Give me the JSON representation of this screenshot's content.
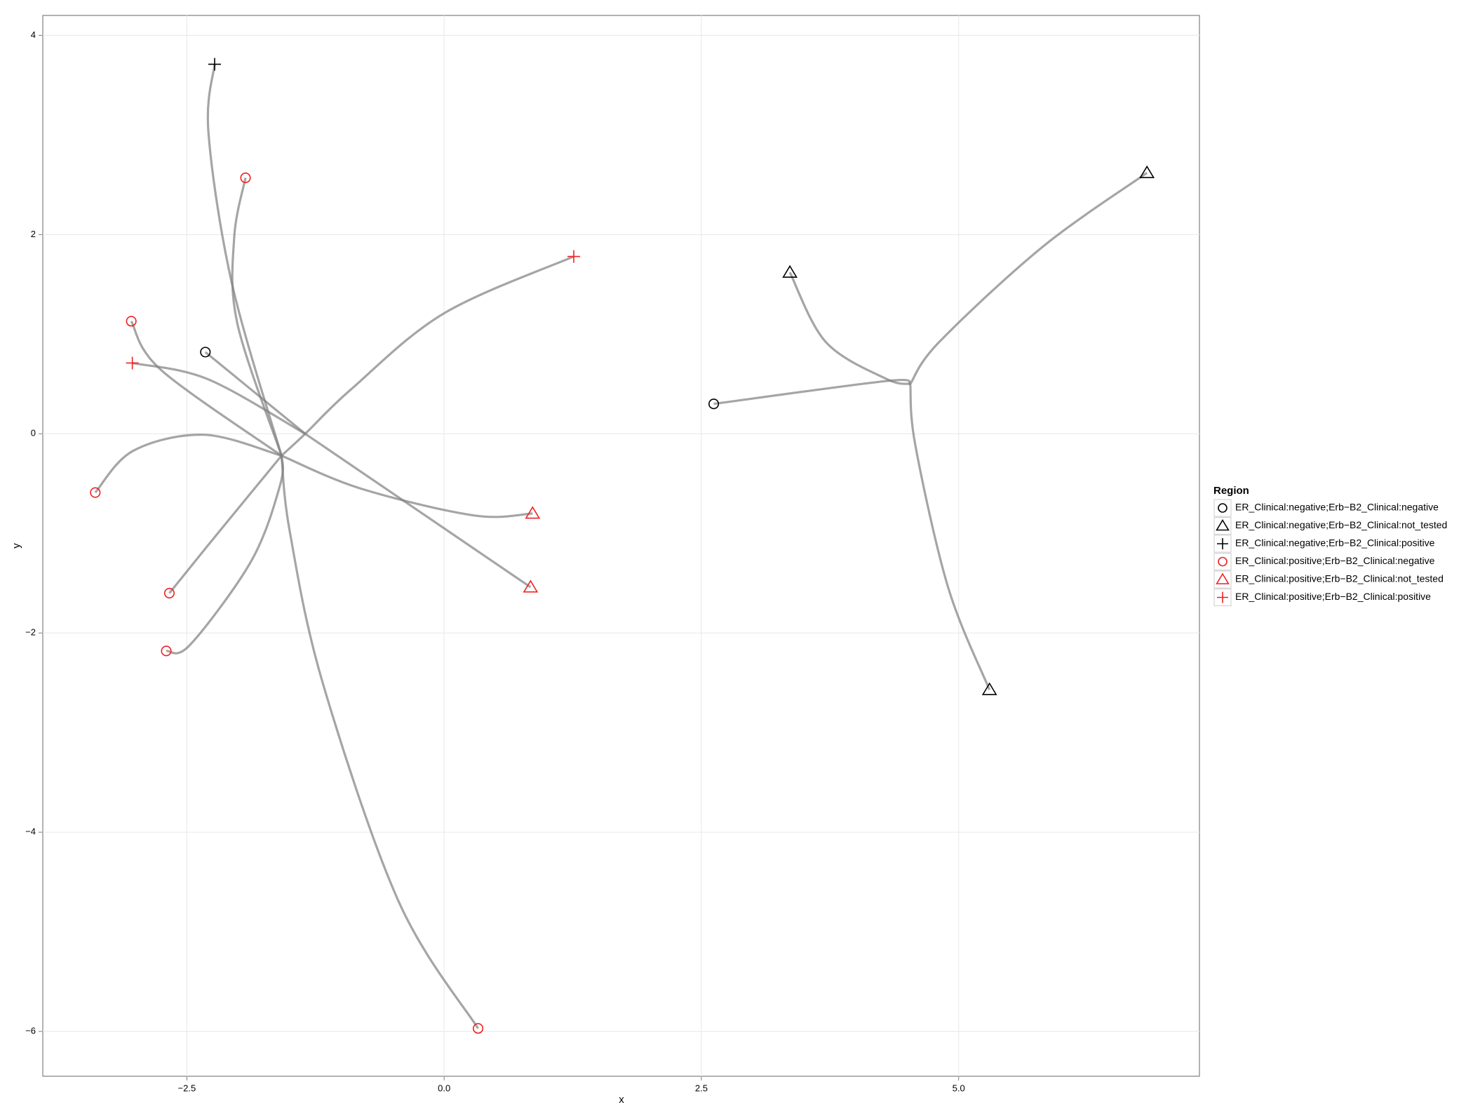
{
  "chart_data": {
    "type": "scatter",
    "x_label": "x",
    "y_label": "y",
    "legend_title": "Region",
    "legend_position": "right",
    "grid": true,
    "xlim": [
      -3.9,
      7.34
    ],
    "ylim": [
      -6.45,
      4.2
    ],
    "xticks": [
      {
        "value": -2.5,
        "label": "−2.5"
      },
      {
        "value": 0,
        "label": "0.0"
      },
      {
        "value": 2.5,
        "label": "2.5"
      },
      {
        "value": 5,
        "label": "5.0"
      }
    ],
    "yticks": [
      {
        "value": -6,
        "label": "−6"
      },
      {
        "value": -4,
        "label": "−4"
      },
      {
        "value": -2,
        "label": "−2"
      },
      0,
      2,
      4
    ],
    "edge_color": "#7f7f7f",
    "edges": [
      {
        "x": [
          -2.23,
          -2.29,
          -2.06,
          -1.58
        ],
        "y": [
          3.71,
          3.02,
          1.5,
          -0.22
        ]
      },
      {
        "x": [
          -1.93,
          -2.04,
          -2.01,
          -1.58
        ],
        "y": [
          2.57,
          1.97,
          1.11,
          -0.22
        ]
      },
      {
        "x": [
          -3.04,
          -2.75,
          -1.58
        ],
        "y": [
          1.13,
          0.64,
          -0.22
        ]
      },
      {
        "x": [
          -3.03,
          -2.3,
          -1.35
        ],
        "y": [
          0.71,
          0.55,
          0
        ]
      },
      {
        "x": [
          -2.32,
          -1.35
        ],
        "y": [
          0.82,
          0
        ]
      },
      {
        "x": [
          -1.35,
          0.84
        ],
        "y": [
          0,
          -1.54
        ]
      },
      {
        "x": [
          -1.58,
          -1.35,
          -0.9,
          0,
          1.26
        ],
        "y": [
          -0.22,
          0,
          0.45,
          1.21,
          1.78
        ]
      },
      {
        "x": [
          -3.39,
          -3.02,
          -2.33,
          -1.58
        ],
        "y": [
          -0.59,
          -0.17,
          -0.01,
          -0.22
        ]
      },
      {
        "x": [
          -1.58,
          -0.81,
          0.29,
          0.86
        ],
        "y": [
          -0.22,
          -0.55,
          -0.82,
          -0.8
        ]
      },
      {
        "x": [
          -2.67,
          -2.2,
          -1.58
        ],
        "y": [
          -1.6,
          -1.0,
          -0.22
        ]
      },
      {
        "x": [
          -2.7,
          -2.47,
          -1.87,
          -1.59,
          -1.58
        ],
        "y": [
          -2.18,
          -2.12,
          -1.27,
          -0.5,
          -0.22
        ]
      },
      {
        "x": [
          0.33,
          -0.44,
          -1.18,
          -1.5,
          -1.58
        ],
        "y": [
          -5.97,
          -4.7,
          -2.5,
          -0.98,
          -0.22
        ]
      },
      {
        "x": [
          2.62,
          4.3,
          4.53
        ],
        "y": [
          0.3,
          0.53,
          0.5
        ]
      },
      {
        "x": [
          3.36,
          3.71,
          4.3,
          4.53
        ],
        "y": [
          1.62,
          0.92,
          0.55,
          0.5
        ]
      },
      {
        "x": [
          6.83,
          5.82,
          4.81,
          4.53
        ],
        "y": [
          2.62,
          1.88,
          0.92,
          0.5
        ]
      },
      {
        "x": [
          5.3,
          4.9,
          4.58,
          4.53
        ],
        "y": [
          -2.57,
          -1.55,
          -0.12,
          0.5
        ]
      }
    ],
    "series": [
      {
        "name": "ER_Clinical:negative;Erb−B2_Clinical:negative",
        "color": "#000000",
        "shape": "circle",
        "x": [
          -2.32,
          2.62
        ],
        "y": [
          0.82,
          0.3
        ]
      },
      {
        "name": "ER_Clinical:negative;Erb−B2_Clinical:not_tested",
        "color": "#000000",
        "shape": "triangle",
        "x": [
          3.36,
          6.83,
          5.3
        ],
        "y": [
          1.62,
          2.62,
          -2.57
        ]
      },
      {
        "name": "ER_Clinical:negative;Erb−B2_Clinical:positive",
        "color": "#000000",
        "shape": "plus",
        "x": [
          -2.23
        ],
        "y": [
          3.71
        ]
      },
      {
        "name": "ER_Clinical:positive;Erb−B2_Clinical:negative",
        "color": "#ee2222",
        "shape": "circle",
        "x": [
          -1.93,
          -3.04,
          -3.39,
          -2.67,
          -2.7,
          0.33
        ],
        "y": [
          2.57,
          1.13,
          -0.59,
          -1.6,
          -2.18,
          -5.97
        ]
      },
      {
        "name": "ER_Clinical:positive;Erb−B2_Clinical:not_tested",
        "color": "#ee2222",
        "shape": "triangle",
        "x": [
          0.86,
          0.84
        ],
        "y": [
          -0.8,
          -1.54
        ]
      },
      {
        "name": "ER_Clinical:positive;Erb−B2_Clinical:positive",
        "color": "#ee2222",
        "shape": "plus",
        "x": [
          1.26,
          -3.03
        ],
        "y": [
          1.78,
          0.71
        ]
      }
    ]
  }
}
